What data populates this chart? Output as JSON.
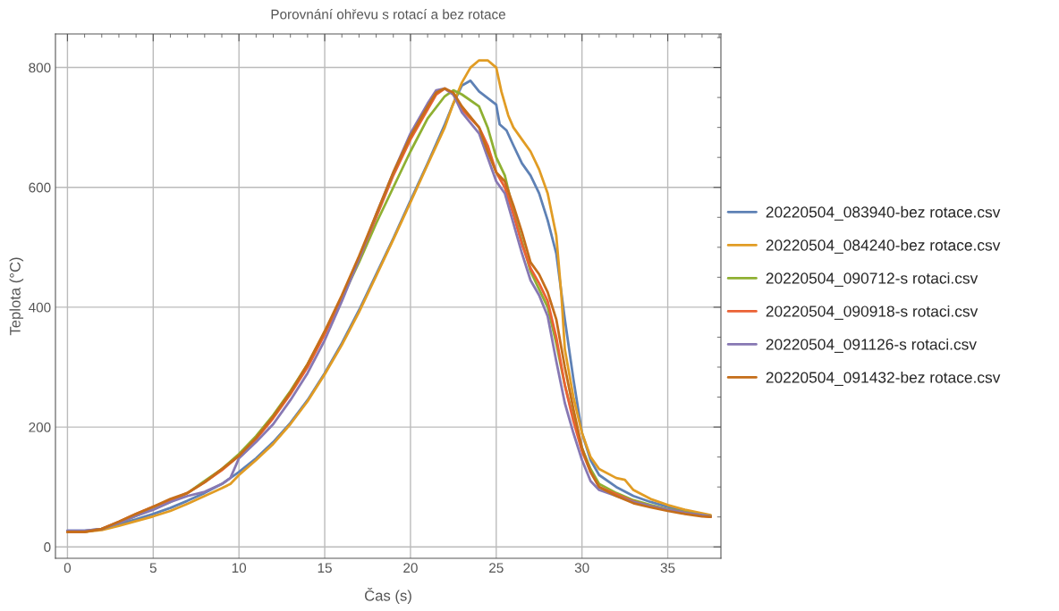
{
  "chart_data": {
    "type": "line",
    "title": "Porovnání ohřevu s rotací a bez rotace",
    "xlabel": "Čas (s)",
    "ylabel": "Teplota (°C)",
    "xlim": [
      -0.7,
      38.1
    ],
    "ylim": [
      -19,
      856
    ],
    "xticks": [
      0,
      5,
      10,
      15,
      20,
      25,
      30,
      35
    ],
    "yticks": [
      0,
      200,
      400,
      600,
      800
    ],
    "grid": true,
    "legend": "right",
    "marker": "none",
    "line_style": "solid",
    "series": [
      {
        "name": "20220504_083940‐bez rotace.csv",
        "color": "#5e81b5",
        "x": [
          0,
          1,
          2,
          3,
          4,
          5,
          6,
          7,
          8,
          9,
          10,
          11,
          12,
          13,
          14,
          15,
          16,
          17,
          18,
          19,
          20,
          21,
          22,
          22.5,
          23,
          23.5,
          24,
          25,
          25.2,
          25.6,
          26,
          26.5,
          27,
          27.5,
          28,
          28.5,
          29,
          29.5,
          30,
          30.5,
          31,
          32,
          33,
          34,
          35,
          36,
          37,
          37.5
        ],
        "values": [
          27,
          27,
          30,
          38,
          46,
          55,
          65,
          77,
          90,
          105,
          125,
          148,
          175,
          207,
          245,
          290,
          340,
          395,
          455,
          515,
          578,
          640,
          705,
          740,
          770,
          778,
          760,
          738,
          705,
          695,
          670,
          640,
          620,
          590,
          545,
          490,
          380,
          280,
          190,
          145,
          120,
          100,
          85,
          75,
          67,
          60,
          55,
          52
        ]
      },
      {
        "name": "20220504_084240‐bez rotace.csv",
        "color": "#e19c24",
        "x": [
          0,
          1,
          2,
          3,
          4,
          5,
          6,
          7,
          8,
          9,
          9.5,
          10,
          11,
          12,
          13,
          14,
          15,
          16,
          17,
          18,
          19,
          20,
          21,
          22,
          22.5,
          23,
          23.5,
          24,
          24.5,
          25,
          25.3,
          25.7,
          26,
          26.5,
          27,
          27.5,
          28,
          28.5,
          28.8,
          29,
          29.5,
          30,
          30.5,
          31,
          32,
          32.5,
          33,
          34,
          35,
          36,
          37,
          37.5
        ],
        "values": [
          25,
          25,
          28,
          35,
          43,
          51,
          60,
          72,
          85,
          98,
          105,
          120,
          145,
          172,
          205,
          243,
          288,
          337,
          392,
          452,
          513,
          575,
          638,
          700,
          740,
          775,
          800,
          812,
          812,
          800,
          760,
          720,
          700,
          680,
          660,
          630,
          590,
          520,
          420,
          330,
          250,
          190,
          150,
          130,
          115,
          112,
          95,
          80,
          70,
          62,
          56,
          53
        ]
      },
      {
        "name": "20220504_090712‐s rotaci.csv",
        "color": "#8fb032",
        "x": [
          0,
          1,
          2,
          3,
          4,
          5,
          6,
          7,
          8,
          9,
          10,
          11,
          12,
          13,
          14,
          15,
          16,
          17,
          18,
          19,
          20,
          21,
          22,
          22.5,
          23,
          24,
          24.5,
          25,
          25.5,
          26,
          26.5,
          27,
          27.5,
          28,
          28.5,
          29,
          29.5,
          30,
          30.5,
          31,
          32,
          33,
          34,
          35,
          36,
          37,
          37.5
        ],
        "values": [
          25,
          25,
          30,
          40,
          52,
          63,
          75,
          90,
          110,
          130,
          155,
          185,
          220,
          260,
          305,
          358,
          415,
          475,
          540,
          600,
          660,
          715,
          752,
          762,
          755,
          735,
          700,
          650,
          620,
          560,
          510,
          460,
          430,
          400,
          340,
          270,
          215,
          165,
          130,
          105,
          90,
          78,
          70,
          63,
          58,
          53,
          51
        ]
      },
      {
        "name": "20220504_090918‐s rotaci.csv",
        "color": "#eb6235",
        "x": [
          0,
          1,
          2,
          3,
          4,
          5,
          6,
          7,
          8,
          9,
          10,
          11,
          12,
          13,
          14,
          15,
          16,
          17,
          18,
          19,
          20,
          21,
          21.5,
          22,
          22.5,
          23,
          24,
          24.5,
          25,
          25.5,
          26,
          26.5,
          27,
          27.5,
          28,
          28.5,
          29,
          29.5,
          30,
          30.5,
          31,
          32,
          33,
          34,
          35,
          36,
          37,
          37.5
        ],
        "values": [
          25,
          25,
          30,
          42,
          55,
          67,
          78,
          90,
          108,
          128,
          152,
          180,
          215,
          255,
          300,
          355,
          415,
          480,
          550,
          620,
          680,
          730,
          755,
          765,
          755,
          730,
          700,
          670,
          625,
          600,
          555,
          505,
          465,
          440,
          410,
          350,
          270,
          210,
          160,
          125,
          100,
          88,
          76,
          68,
          62,
          57,
          52,
          50
        ]
      },
      {
        "name": "20220504_091126‐s rotaci.csv",
        "color": "#8778b3",
        "x": [
          0,
          1,
          2,
          3,
          4,
          5,
          6,
          7,
          8,
          9,
          9.5,
          10,
          11,
          12,
          13,
          14,
          15,
          16,
          17,
          18,
          19,
          20,
          21,
          21.5,
          22,
          22.5,
          23,
          24,
          24.5,
          25,
          25.5,
          26,
          26.5,
          27,
          27.5,
          28,
          28.5,
          29,
          29.5,
          30,
          30.5,
          31,
          32,
          33,
          34,
          35,
          36,
          37,
          37.5
        ],
        "values": [
          27,
          27,
          30,
          40,
          52,
          62,
          75,
          85,
          92,
          105,
          115,
          148,
          175,
          205,
          245,
          290,
          345,
          410,
          480,
          555,
          625,
          690,
          740,
          762,
          765,
          755,
          725,
          690,
          650,
          610,
          590,
          540,
          490,
          445,
          420,
          385,
          310,
          240,
          190,
          145,
          110,
          95,
          85,
          75,
          68,
          62,
          57,
          53,
          51
        ]
      },
      {
        "name": "20220504_091432‐bez rotace.csv",
        "color": "#c56e1a",
        "x": [
          0,
          1,
          2,
          3,
          4,
          5,
          6,
          7,
          8,
          9,
          10,
          11,
          12,
          13,
          14,
          15,
          16,
          17,
          18,
          19,
          20,
          21,
          21.5,
          22,
          22.5,
          23,
          24,
          24.5,
          25,
          25.5,
          26,
          26.5,
          27,
          27.5,
          28,
          28.5,
          29,
          29.5,
          30,
          30.5,
          31,
          32,
          33,
          34,
          35,
          36,
          37,
          37.5
        ],
        "values": [
          25,
          25,
          30,
          42,
          55,
          67,
          80,
          90,
          108,
          130,
          152,
          182,
          218,
          258,
          305,
          360,
          420,
          485,
          555,
          625,
          685,
          735,
          758,
          765,
          758,
          735,
          700,
          660,
          625,
          610,
          570,
          525,
          475,
          455,
          425,
          380,
          300,
          230,
          165,
          125,
          100,
          85,
          73,
          66,
          60,
          55,
          51,
          50
        ]
      }
    ]
  }
}
